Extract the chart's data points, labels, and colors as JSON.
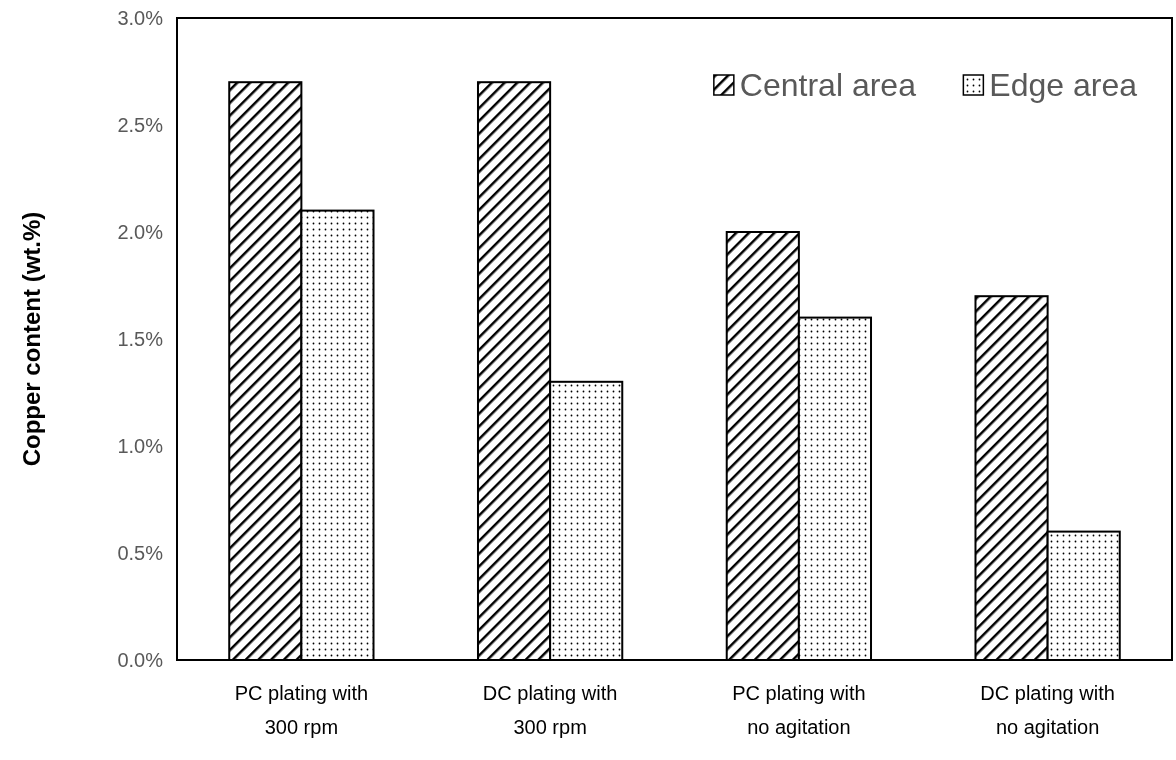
{
  "chart_data": {
    "type": "bar",
    "ylabel": "Copper content (wt.%)",
    "categories": [
      "PC plating with 300 rpm",
      "DC plating with 300 rpm",
      "PC plating with no agitation",
      "DC plating with no agitation"
    ],
    "series": [
      {
        "name": "Central area",
        "color": "#000000",
        "values": [
          2.7,
          2.7,
          2.0,
          1.7
        ]
      },
      {
        "name": "Edge area",
        "color": "#000000",
        "values": [
          2.1,
          1.3,
          1.6,
          0.6
        ]
      }
    ],
    "ylim": [
      0,
      3
    ],
    "yticks": [
      {
        "value": 0,
        "label": "0.0%"
      },
      {
        "value": 0.5,
        "label": "0.5%"
      },
      {
        "value": 1,
        "label": "1.0%"
      },
      {
        "value": 1.5,
        "label": "1.5%"
      },
      {
        "value": 2,
        "label": "2.0%"
      },
      {
        "value": 2.5,
        "label": "2.5%"
      },
      {
        "value": 3,
        "label": "3.0%"
      }
    ],
    "grid": false,
    "legend": "top right"
  }
}
